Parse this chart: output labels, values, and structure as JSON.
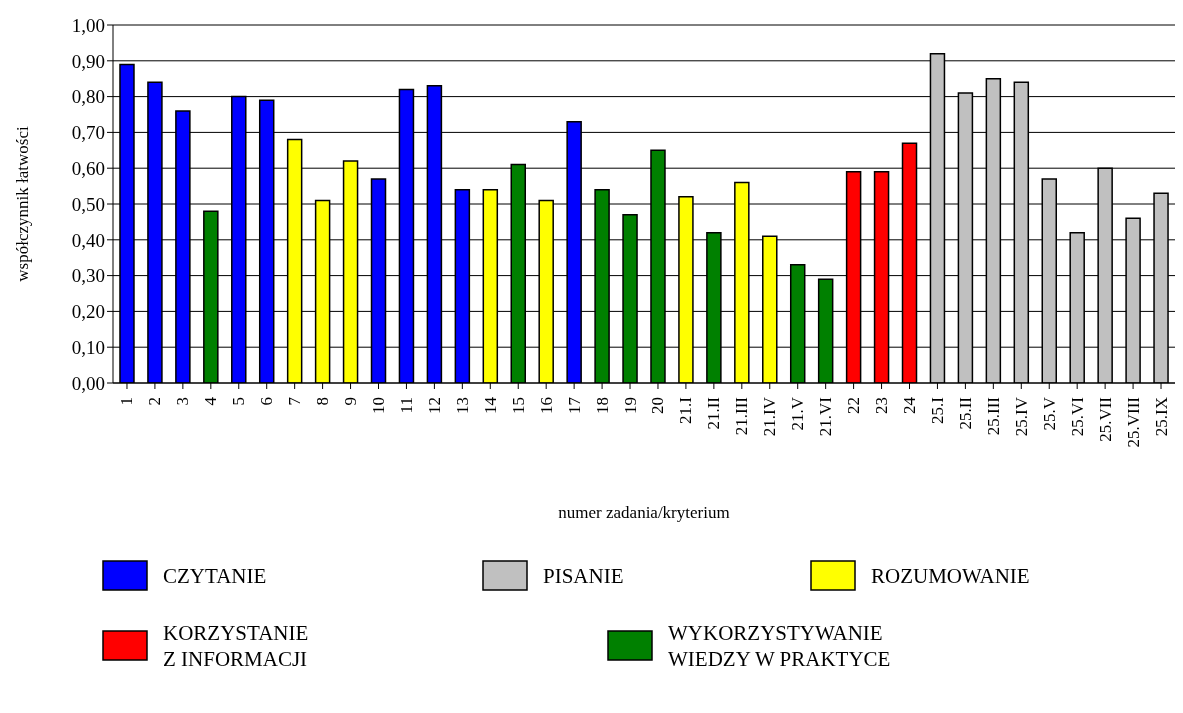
{
  "chart_data": {
    "type": "bar",
    "stacked": true,
    "xlabel": "numer zadania/kryterium",
    "ylabel": "współczynnik łatwości",
    "categories": [
      "1",
      "2",
      "3",
      "4",
      "5",
      "6",
      "7",
      "8",
      "9",
      "10",
      "11",
      "12",
      "13",
      "14",
      "15",
      "16",
      "17",
      "18",
      "19",
      "20",
      "21.I",
      "21.II",
      "21.III",
      "21.IV",
      "21.V",
      "21.VI",
      "22",
      "23",
      "24",
      "25.I",
      "25.II",
      "25.III",
      "25.IV",
      "25.V",
      "25.VI",
      "25.VII",
      "25.VIII",
      "25.IX"
    ],
    "series": [
      {
        "name": "CZYTANIE",
        "color": "#0000ff",
        "values": [
          0.89,
          0.84,
          0.76,
          null,
          0.8,
          0.79,
          null,
          null,
          null,
          0.57,
          0.82,
          0.83,
          0.54,
          null,
          null,
          null,
          0.73,
          null,
          null,
          null,
          null,
          null,
          null,
          null,
          null,
          null,
          null,
          null,
          null,
          null,
          null,
          null,
          null,
          null,
          null,
          null,
          null,
          null
        ]
      },
      {
        "name": "PISANIE",
        "color": "#c0c0c0",
        "values": [
          null,
          null,
          null,
          null,
          null,
          null,
          null,
          null,
          null,
          null,
          null,
          null,
          null,
          null,
          null,
          null,
          null,
          null,
          null,
          null,
          null,
          null,
          null,
          null,
          null,
          null,
          null,
          null,
          null,
          0.92,
          0.81,
          0.85,
          0.84,
          0.57,
          0.42,
          0.6,
          0.46,
          0.53
        ]
      },
      {
        "name": "ROZUMOWANIE",
        "color": "#ffff00",
        "values": [
          null,
          null,
          null,
          null,
          null,
          null,
          0.68,
          0.51,
          0.62,
          null,
          null,
          null,
          null,
          0.54,
          null,
          0.51,
          null,
          null,
          null,
          null,
          0.52,
          null,
          0.56,
          0.41,
          null,
          null,
          null,
          null,
          null,
          null,
          null,
          null,
          null,
          null,
          null,
          null,
          null,
          null
        ]
      },
      {
        "name": "KORZYSTANIE\nZ INFORMACJI",
        "color": "#ff0000",
        "values": [
          null,
          null,
          null,
          null,
          null,
          null,
          null,
          null,
          null,
          null,
          null,
          null,
          null,
          null,
          null,
          null,
          null,
          null,
          null,
          null,
          null,
          null,
          null,
          null,
          null,
          null,
          0.59,
          0.59,
          0.67,
          null,
          null,
          null,
          null,
          null,
          null,
          null,
          null,
          null
        ]
      },
      {
        "name": "WYKORZYSTYWANIE\nWIEDZY W PRAKTYCE",
        "color": "#008000",
        "values": [
          null,
          null,
          null,
          0.48,
          null,
          null,
          null,
          null,
          null,
          null,
          null,
          null,
          null,
          null,
          0.61,
          null,
          null,
          0.54,
          0.47,
          0.65,
          null,
          0.42,
          null,
          null,
          0.33,
          0.29,
          null,
          null,
          null,
          null,
          null,
          null,
          null,
          null,
          null,
          null,
          null,
          null
        ]
      }
    ],
    "ylim": [
      0,
      1
    ],
    "yticks": [
      {
        "value": 0,
        "label": "0,00"
      },
      {
        "value": 0.1,
        "label": "0,10"
      },
      {
        "value": 0.2,
        "label": "0,20"
      },
      {
        "value": 0.3,
        "label": "0,30"
      },
      {
        "value": 0.4,
        "label": "0,40"
      },
      {
        "value": 0.5,
        "label": "0,50"
      },
      {
        "value": 0.6,
        "label": "0,60"
      },
      {
        "value": 0.7,
        "label": "0,70"
      },
      {
        "value": 0.8,
        "label": "0,80"
      },
      {
        "value": 0.9,
        "label": "0,90"
      },
      {
        "value": 1,
        "label": "1,00"
      }
    ],
    "grid": "y",
    "legend": "bottom"
  }
}
